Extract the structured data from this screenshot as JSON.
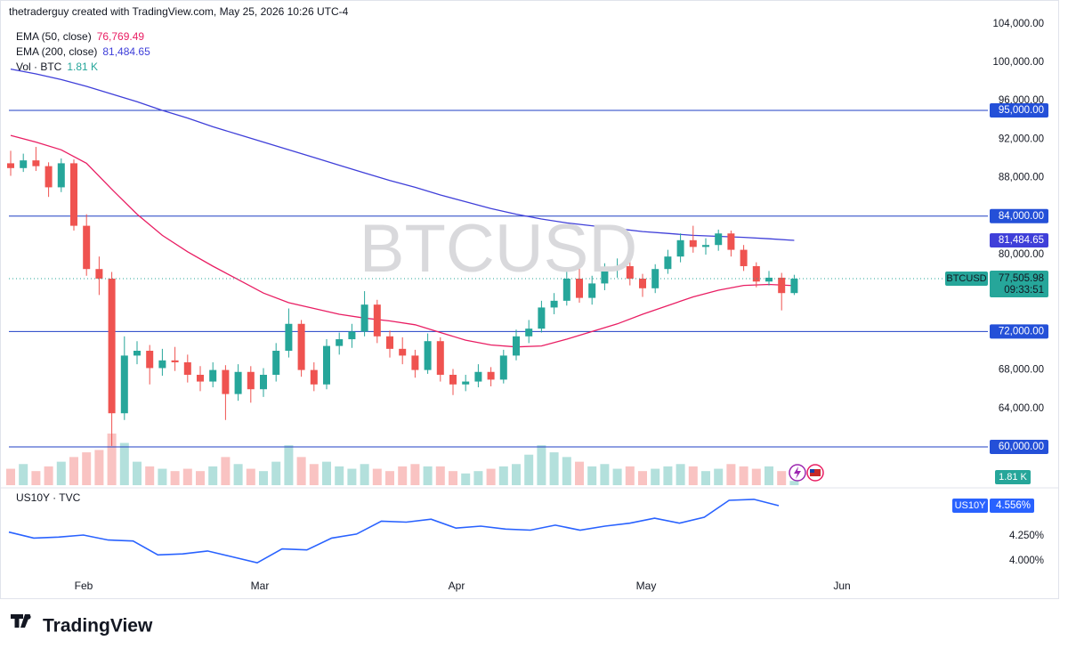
{
  "header": "thetraderguy created with TradingView.com, May 25, 2026 10:26 UTC-4",
  "footer": "TradingView",
  "chart_data": [
    {
      "type": "candlestick",
      "symbol": "BTCUSD",
      "up_color": "#26a69a",
      "down_color": "#ef5350",
      "ylim": [
        56020,
        105370
      ],
      "yticks": [
        {
          "value": 104000,
          "label": "104,000.00"
        },
        {
          "value": 100000,
          "label": "100,000.00"
        },
        {
          "value": 96000,
          "label": "96,000.00"
        },
        {
          "value": 92000,
          "label": "92,000.00"
        },
        {
          "value": 88000,
          "label": "88,000.00"
        },
        {
          "value": 80000,
          "label": "80,000.00"
        },
        {
          "value": 68000,
          "label": "68,000.00"
        },
        {
          "value": 64000,
          "label": "64,000.00"
        }
      ],
      "levels": [
        {
          "value": 95000,
          "label": "95,000.00"
        },
        {
          "value": 84000,
          "label": "84,000.00"
        },
        {
          "value": 72000,
          "label": "72,000.00"
        },
        {
          "value": 60000,
          "label": "60,000.00"
        }
      ],
      "level_color": "#1f3fc4",
      "xtick_labels": [
        "Feb",
        "Mar",
        "Apr",
        "May",
        "Jun"
      ],
      "last_price_label": "77,505.98",
      "countdown": "09:33:51",
      "ohlc": [
        [
          89500,
          90800,
          88200,
          89000
        ],
        [
          89000,
          90500,
          88600,
          89800
        ],
        [
          89800,
          91200,
          88700,
          89200
        ],
        [
          89200,
          89600,
          86000,
          87000
        ],
        [
          87000,
          90000,
          86500,
          89500
        ],
        [
          89500,
          89900,
          82500,
          83000
        ],
        [
          83000,
          84200,
          77800,
          78500
        ],
        [
          78500,
          79800,
          75800,
          77500
        ],
        [
          77500,
          78200,
          60100,
          63500
        ],
        [
          63500,
          71500,
          62800,
          69500
        ],
        [
          69500,
          71000,
          68600,
          70000
        ],
        [
          70000,
          70600,
          66500,
          68200
        ],
        [
          68200,
          70200,
          67400,
          69000
        ],
        [
          69000,
          70400,
          67900,
          68800
        ],
        [
          68800,
          69600,
          66700,
          67500
        ],
        [
          67500,
          68400,
          65800,
          66800
        ],
        [
          66800,
          68800,
          66200,
          68000
        ],
        [
          68000,
          68500,
          62800,
          65500
        ],
        [
          65500,
          68600,
          64800,
          67800
        ],
        [
          67800,
          68400,
          64600,
          66000
        ],
        [
          66000,
          68200,
          65200,
          67500
        ],
        [
          67500,
          70800,
          66800,
          70000
        ],
        [
          70000,
          74400,
          69300,
          72800
        ],
        [
          72800,
          73200,
          67300,
          68000
        ],
        [
          68000,
          68800,
          65800,
          66500
        ],
        [
          66500,
          71200,
          66000,
          70500
        ],
        [
          70500,
          71900,
          69600,
          71200
        ],
        [
          71200,
          72800,
          70300,
          72000
        ],
        [
          72000,
          76200,
          71500,
          74800
        ],
        [
          74800,
          75300,
          70800,
          71500
        ],
        [
          71500,
          72100,
          69300,
          70200
        ],
        [
          70200,
          71400,
          68600,
          69500
        ],
        [
          69500,
          70100,
          67200,
          68000
        ],
        [
          68000,
          71800,
          67600,
          71000
        ],
        [
          71000,
          71400,
          66800,
          67500
        ],
        [
          67500,
          68100,
          65400,
          66500
        ],
        [
          66500,
          67500,
          65800,
          66800
        ],
        [
          66800,
          68600,
          66200,
          67800
        ],
        [
          67800,
          68300,
          66300,
          67000
        ],
        [
          67000,
          70100,
          66600,
          69500
        ],
        [
          69500,
          72200,
          69000,
          71500
        ],
        [
          71500,
          73200,
          70800,
          72300
        ],
        [
          72300,
          75200,
          71900,
          74500
        ],
        [
          74500,
          76000,
          73800,
          75200
        ],
        [
          75200,
          78200,
          74700,
          77500
        ],
        [
          77500,
          79300,
          75000,
          75500
        ],
        [
          75500,
          77800,
          74800,
          77000
        ],
        [
          77000,
          79100,
          76300,
          78500
        ],
        [
          78500,
          79600,
          77600,
          78800
        ],
        [
          78800,
          79300,
          76800,
          77500
        ],
        [
          77500,
          78000,
          75600,
          76500
        ],
        [
          76500,
          79000,
          76000,
          78500
        ],
        [
          78500,
          80500,
          78000,
          79800
        ],
        [
          79800,
          82200,
          79200,
          81500
        ],
        [
          81500,
          83000,
          80200,
          80800
        ],
        [
          80800,
          81700,
          80000,
          81000
        ],
        [
          81000,
          82600,
          80400,
          82200
        ],
        [
          82200,
          82500,
          79800,
          80500
        ],
        [
          80500,
          81000,
          78300,
          78800
        ],
        [
          78800,
          79200,
          76600,
          77200
        ],
        [
          77200,
          78300,
          76800,
          77600
        ],
        [
          77600,
          78100,
          74200,
          76000
        ],
        [
          76000,
          77900,
          75800,
          77505.98
        ]
      ],
      "volume_name": "Vol · BTC",
      "volume_last_label": "1.81 K",
      "vlim": [
        0,
        22
      ],
      "volume": [
        7,
        9,
        6,
        8,
        10,
        12,
        14,
        15,
        22,
        18,
        10,
        8,
        7,
        6,
        7,
        6,
        8,
        12,
        9,
        7,
        6,
        10,
        17,
        12,
        9,
        10,
        8,
        7,
        9,
        7,
        6,
        8,
        9,
        8,
        8,
        6,
        5,
        6,
        7,
        8,
        9,
        13,
        17,
        14,
        12,
        10,
        8,
        9,
        7,
        8,
        6,
        7,
        8,
        9,
        8,
        6,
        7,
        9,
        8,
        7,
        8,
        6,
        1.81
      ],
      "series": [
        {
          "name": "EMA (50, close)",
          "color": "#e91e63",
          "last_value_label": "76,769.49",
          "values": [
            92400,
            91700,
            90900,
            89500,
            86800,
            84200,
            82000,
            80300,
            78800,
            77400,
            76000,
            75000,
            74400,
            73800,
            73400,
            73100,
            72700,
            71900,
            71100,
            70600,
            70400,
            70500,
            71200,
            72000,
            72800,
            73800,
            74700,
            75600,
            76300,
            76800,
            76900,
            76769.49
          ]
        },
        {
          "name": "EMA (200, close)",
          "color": "#3f3fd9",
          "last_value_label": "81,484.65",
          "values": [
            99300,
            98800,
            98200,
            97500,
            96700,
            95900,
            95000,
            94200,
            93300,
            92500,
            91700,
            90900,
            90100,
            89300,
            88500,
            87700,
            87000,
            86200,
            85500,
            84800,
            84200,
            83700,
            83300,
            83000,
            82700,
            82400,
            82200,
            82000,
            81900,
            81800,
            81650,
            81484.65
          ]
        }
      ]
    },
    {
      "type": "line",
      "name": "US10Y · TVC",
      "symbol": "US10Y",
      "color": "#2962ff",
      "last_value_label": "4.556%",
      "ylim": [
        3.623,
        4.7
      ],
      "yticks": [
        {
          "value": 4,
          "label": "4.000%"
        },
        {
          "value": 4.25,
          "label": "4.250%"
        }
      ],
      "values": [
        4.29,
        4.23,
        4.24,
        4.26,
        4.21,
        4.2,
        4.06,
        4.07,
        4.1,
        4.04,
        3.98,
        4.12,
        4.11,
        4.23,
        4.27,
        4.4,
        4.39,
        4.42,
        4.33,
        4.35,
        4.32,
        4.31,
        4.36,
        4.31,
        4.35,
        4.38,
        4.43,
        4.38,
        4.44,
        4.61,
        4.62,
        4.556
      ]
    }
  ]
}
